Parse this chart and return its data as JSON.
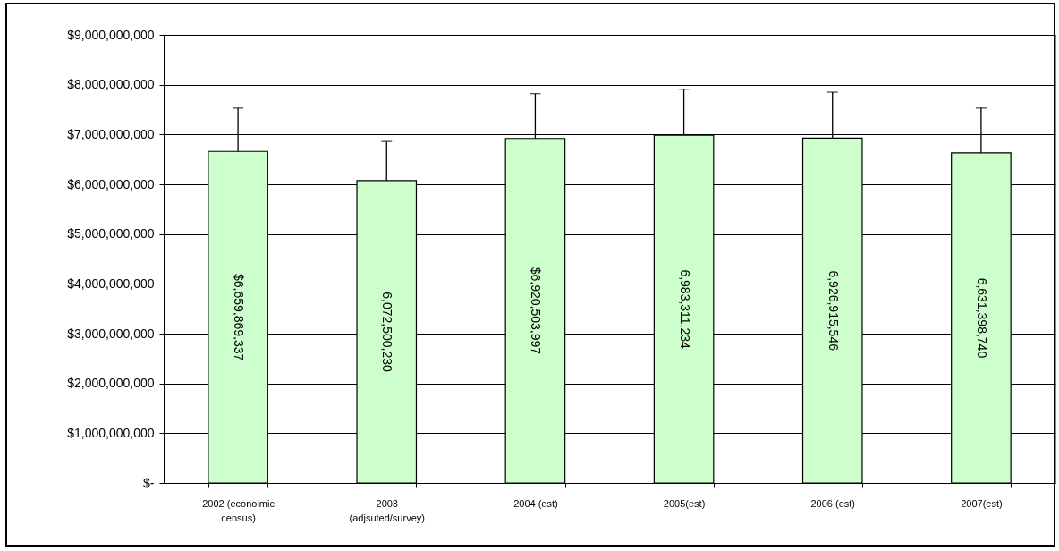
{
  "chart_data": {
    "type": "bar",
    "categories": [
      "2002 (econoimic census)",
      "2003 (adjsuted/survey)",
      "2004 (est)",
      "2005(est)",
      "2006 (est)",
      "2007(est)"
    ],
    "values": [
      6659869337,
      6072500230,
      6920503997,
      6983311234,
      6926915546,
      6631398740
    ],
    "value_labels": [
      "$6,659,869,337",
      "6,072,500,230",
      "$6,920,503,997",
      "6,983,311,234",
      "6,926,915,546",
      "6,631,398,740"
    ],
    "errors": [
      [
        6659869337,
        7530000000
      ],
      [
        6072500230,
        6860000000
      ],
      [
        6920503997,
        7820000000
      ],
      [
        6983311234,
        7910000000
      ],
      [
        6926915546,
        7850000000
      ],
      [
        6631398740,
        7530000000
      ]
    ],
    "color": "#ccffcc",
    "ylim": [
      0,
      9000000000
    ],
    "yticks": [
      {
        "value": 0,
        "label": "$-"
      },
      {
        "value": 1000000000,
        "label": "$1,000,000,000"
      },
      {
        "value": 2000000000,
        "label": "$2,000,000,000"
      },
      {
        "value": 3000000000,
        "label": "$3,000,000,000"
      },
      {
        "value": 4000000000,
        "label": "$4,000,000,000"
      },
      {
        "value": 5000000000,
        "label": "$5,000,000,000"
      },
      {
        "value": 6000000000,
        "label": "$6,000,000,000"
      },
      {
        "value": 7000000000,
        "label": "$7,000,000,000"
      },
      {
        "value": 8000000000,
        "label": "$8,000,000,000"
      },
      {
        "value": 9000000000,
        "label": "$9,000,000,000"
      }
    ],
    "grid": "y"
  }
}
